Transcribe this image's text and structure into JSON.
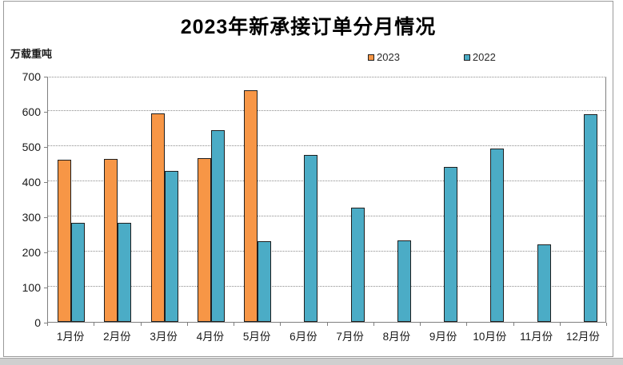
{
  "chart_data": {
    "type": "bar",
    "title": "2023年新承接订单分月情况",
    "unit_label": "万载重吨",
    "categories": [
      "1月份",
      "2月份",
      "3月份",
      "4月份",
      "5月份",
      "6月份",
      "7月份",
      "8月份",
      "9月份",
      "10月份",
      "11月份",
      "12月份"
    ],
    "series": [
      {
        "name": "2023",
        "color": "#F79646",
        "values": [
          461,
          463,
          593,
          466,
          658,
          null,
          null,
          null,
          null,
          null,
          null,
          null
        ]
      },
      {
        "name": "2022",
        "color": "#4BACC6",
        "values": [
          281,
          282,
          429,
          546,
          230,
          476,
          325,
          232,
          440,
          493,
          220,
          590
        ]
      }
    ],
    "ylim": [
      0,
      700
    ],
    "yticks": [
      0,
      100,
      200,
      300,
      400,
      500,
      600,
      700
    ],
    "xlabel": "",
    "ylabel": "万载重吨",
    "grid": "horizontal-dotted",
    "legend_position": "top-center"
  }
}
